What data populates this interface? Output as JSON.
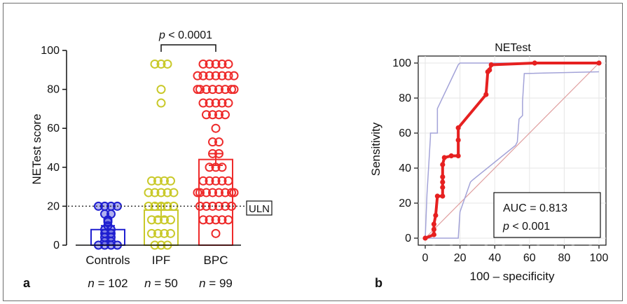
{
  "chart_data": [
    {
      "type": "scatter",
      "panel_label": "a",
      "categories": [
        "Controls",
        "IPF",
        "BPC"
      ],
      "n_labels": [
        "n = 102",
        "n = 50",
        "n = 99"
      ],
      "ylabel": "NETest score",
      "ylim": [
        0,
        100
      ],
      "yticks": [
        "0",
        "20",
        "40",
        "60",
        "80",
        "100"
      ],
      "uln_value": 20,
      "uln_label": "ULN",
      "significance": {
        "text": "p < 0.0001",
        "between": [
          "IPF",
          "BPC"
        ]
      },
      "colors": {
        "Controls": "#1f1fd0",
        "IPF": "#c9c92a",
        "BPC": "#ee2b2b"
      },
      "series": [
        {
          "category": "Controls",
          "mean": 8,
          "error": 2,
          "points": [
            0,
            0,
            0,
            0,
            2,
            2,
            4,
            4,
            6,
            6,
            8,
            8,
            10,
            12,
            13,
            16,
            16,
            20,
            20,
            20,
            20
          ]
        },
        {
          "category": "IPF",
          "mean": 18,
          "error": 3.5,
          "points": [
            93,
            93,
            93,
            80,
            73,
            33,
            33,
            33,
            33,
            27,
            27,
            27,
            27,
            27,
            20,
            20,
            20,
            20,
            20,
            13,
            13,
            13,
            13,
            6,
            6,
            6,
            6,
            0,
            0,
            0
          ]
        },
        {
          "category": "BPC",
          "mean": 44,
          "error": 3,
          "points": [
            93,
            93,
            93,
            93,
            93,
            87,
            87,
            87,
            87,
            87,
            87,
            87,
            80,
            80,
            80,
            80,
            80,
            80,
            80,
            80,
            73,
            73,
            73,
            73,
            73,
            67,
            67,
            67,
            67,
            60,
            53,
            53,
            47,
            47,
            40,
            40,
            40,
            33,
            33,
            33,
            33,
            33,
            27,
            27,
            27,
            27,
            27,
            27,
            27,
            27,
            20,
            20,
            20,
            20,
            20,
            20,
            13,
            13,
            13,
            13,
            13,
            6
          ]
        }
      ]
    },
    {
      "type": "line",
      "panel_label": "b",
      "title": "NETest",
      "xlabel": "100 – specificity",
      "ylabel": "Sensitivity",
      "xlim": [
        0,
        100
      ],
      "ylim": [
        0,
        100
      ],
      "xticks": [
        "0",
        "20",
        "40",
        "60",
        "80",
        "100"
      ],
      "yticks": [
        "0",
        "20",
        "40",
        "60",
        "80",
        "100"
      ],
      "auc_text": "AUC = 0.813",
      "p_text": "p < 0.001",
      "colors": {
        "roc": "#e62020",
        "ci": "#a3a3d8",
        "diagonal": "#e0a0a0"
      },
      "roc": {
        "x": [
          0,
          5,
          5,
          5,
          6,
          7,
          10,
          10,
          10,
          10,
          10,
          11,
          15,
          19,
          19,
          19,
          35,
          36,
          37,
          38,
          63,
          100
        ],
        "y": [
          0,
          2,
          5,
          8,
          13,
          24,
          24,
          29,
          32,
          35,
          42,
          46,
          47,
          47,
          56,
          63,
          82,
          95,
          96,
          99,
          100,
          100
        ]
      },
      "ci_upper": {
        "x": [
          0,
          1,
          3,
          3,
          7,
          7,
          19,
          20,
          100
        ],
        "y": [
          0,
          25,
          58,
          60,
          60,
          74,
          99,
          100,
          100
        ]
      },
      "ci_lower": {
        "x": [
          0,
          19,
          20,
          26,
          27,
          52,
          53,
          54,
          56,
          56,
          57,
          100
        ],
        "y": [
          0,
          0,
          15,
          32,
          33,
          53,
          55,
          68,
          70,
          78,
          94,
          95
        ]
      },
      "diagonal": {
        "x": [
          0,
          100
        ],
        "y": [
          0,
          100
        ]
      }
    }
  ]
}
